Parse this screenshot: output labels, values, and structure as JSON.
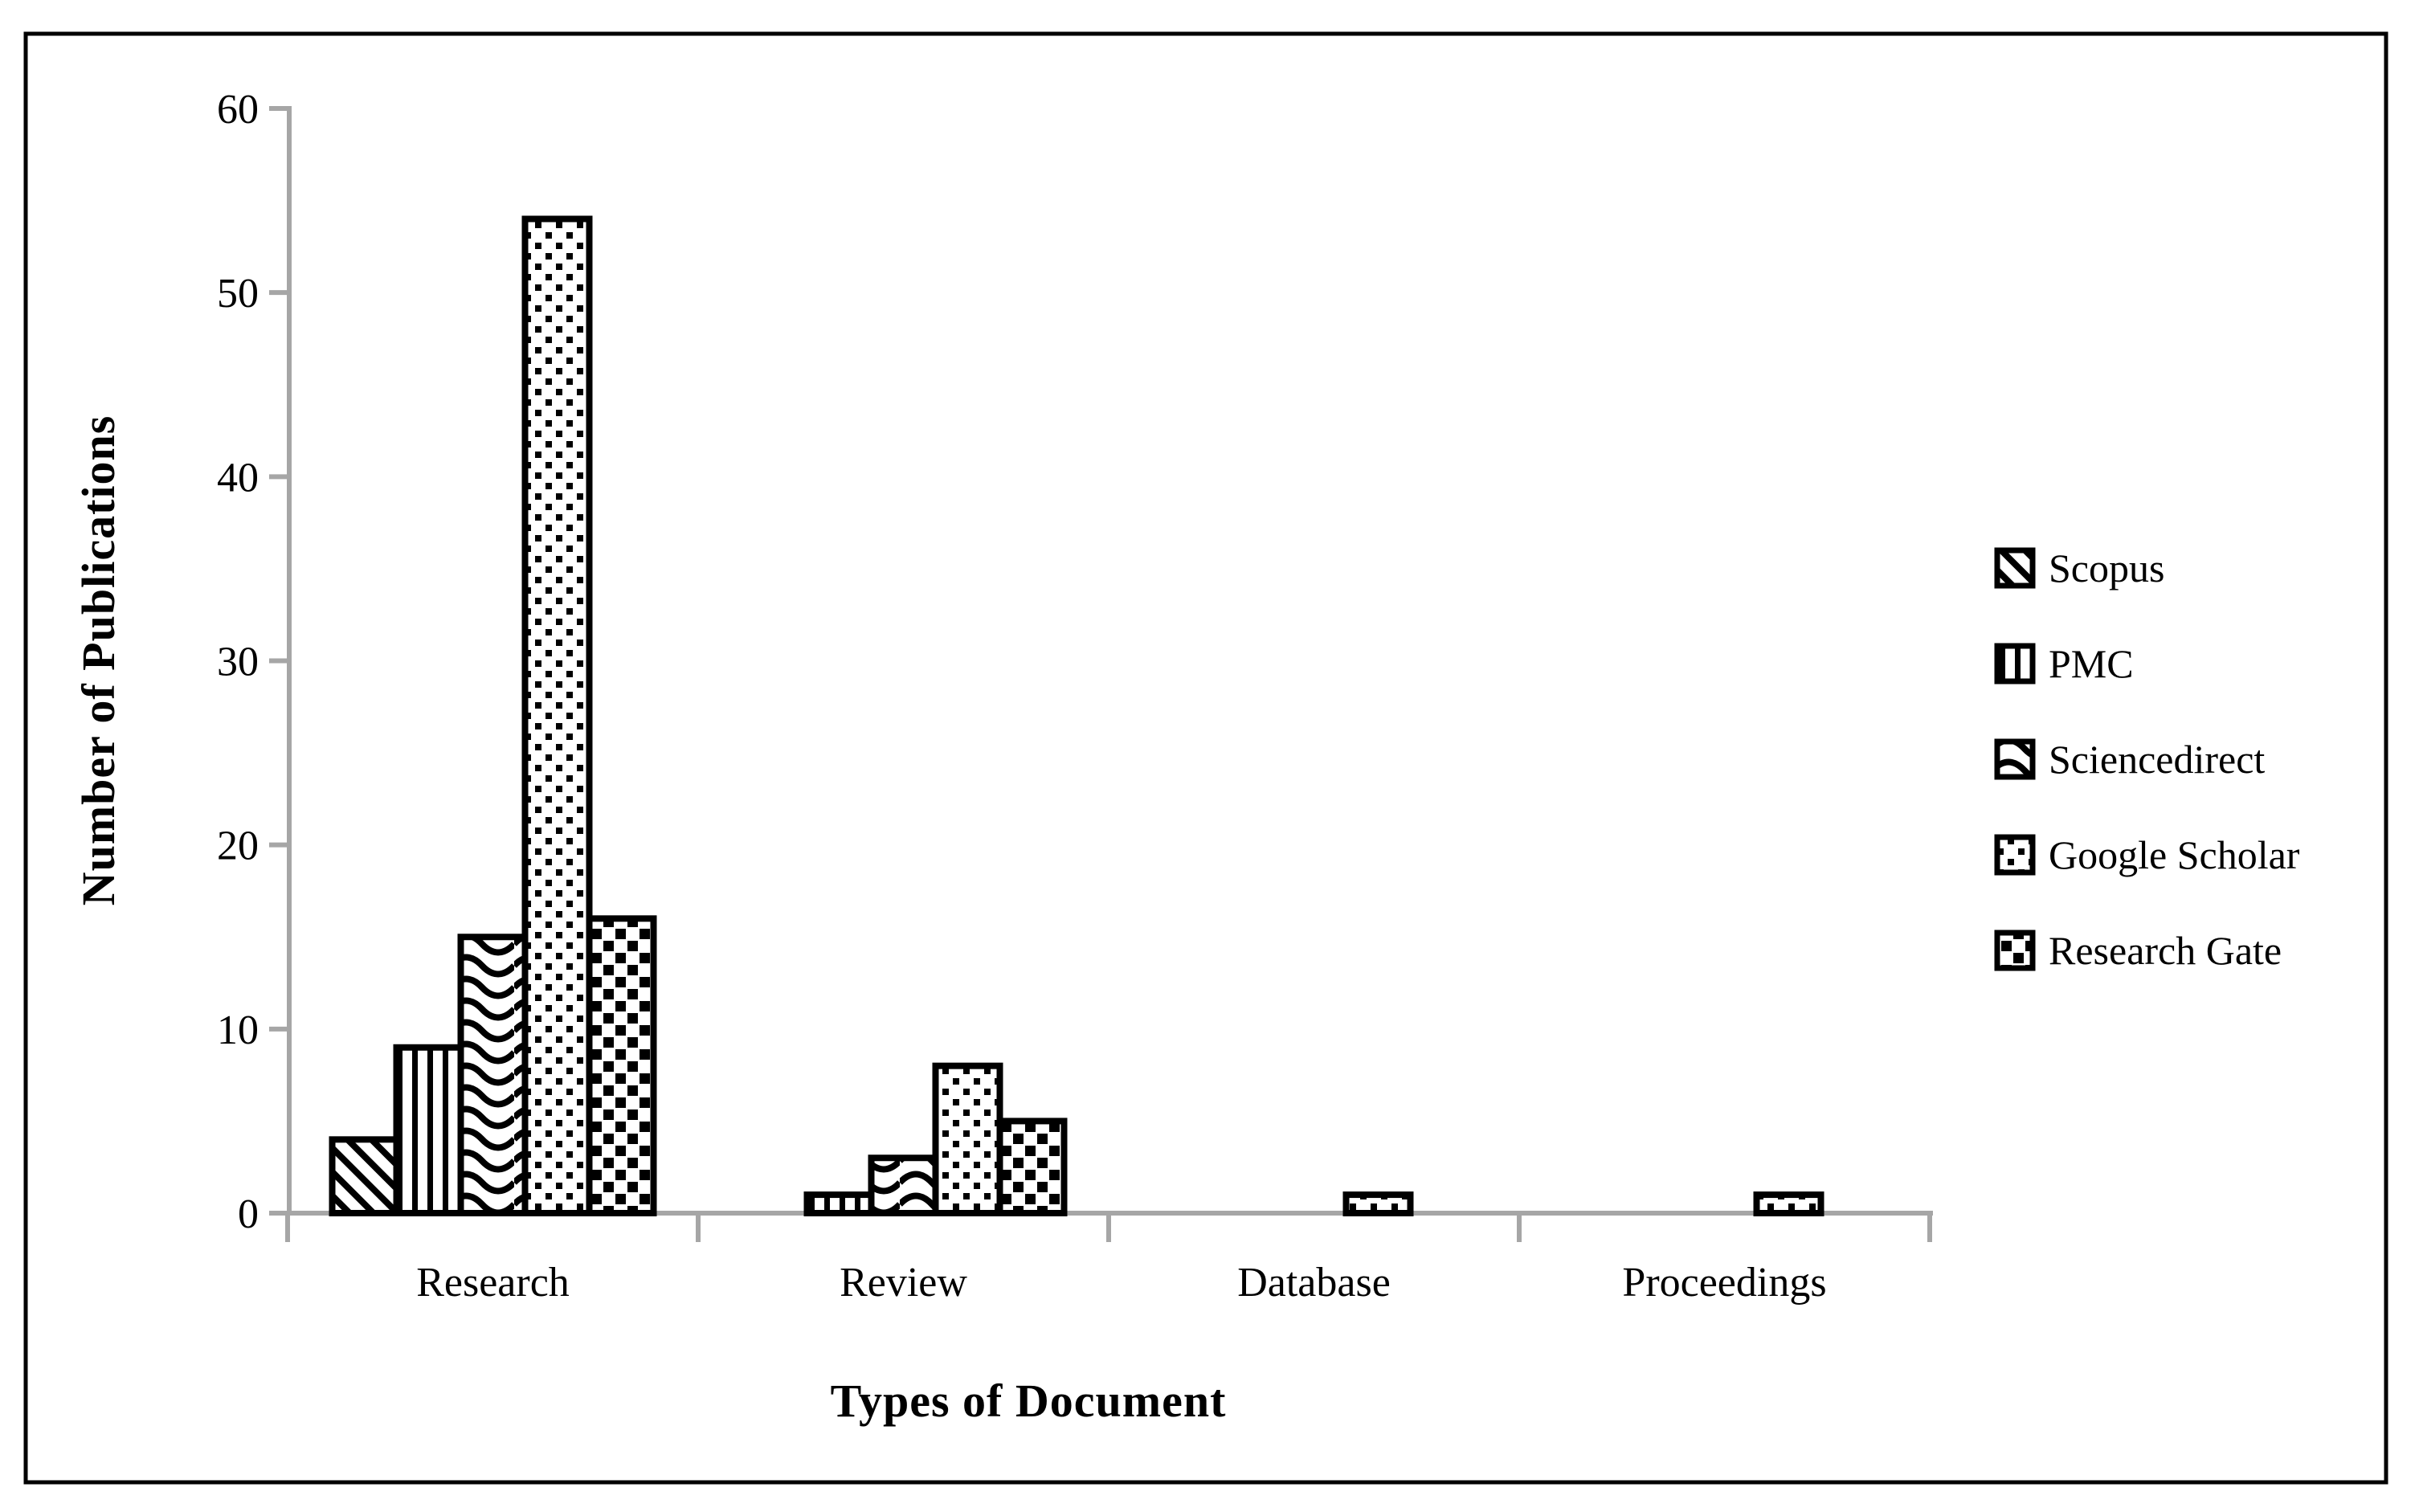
{
  "chart_data": {
    "type": "bar",
    "title": "",
    "xlabel": "Types of Document",
    "ylabel": "Number of Publications",
    "categories": [
      "Research",
      "Review",
      "Database",
      "Proceedings"
    ],
    "series": [
      {
        "name": "Scopus",
        "pattern": "diagonal-stripes",
        "values": [
          4,
          0,
          0,
          0
        ]
      },
      {
        "name": "PMC",
        "pattern": "vertical-stripes",
        "values": [
          9,
          1,
          0,
          0
        ]
      },
      {
        "name": "Sciencedirect",
        "pattern": "horizontal-waves",
        "values": [
          15,
          3,
          0,
          0
        ]
      },
      {
        "name": "Google Scholar",
        "pattern": "small-dots",
        "values": [
          54,
          8,
          1,
          1
        ]
      },
      {
        "name": "Research Gate",
        "pattern": "checkered-squares",
        "values": [
          16,
          5,
          0,
          0
        ]
      }
    ],
    "ylim": [
      0,
      60
    ],
    "ytick_interval": 10,
    "ytick_labels": [
      "0",
      "10",
      "20",
      "30",
      "40",
      "50",
      "60"
    ],
    "legend_position": "right",
    "grid": false,
    "colors": {
      "background": "#ffffff",
      "frame": "#000000",
      "axis": "#a6a6a6",
      "text": "#000000",
      "bar_stroke": "#000000",
      "bar_fill": "#ffffff"
    }
  }
}
